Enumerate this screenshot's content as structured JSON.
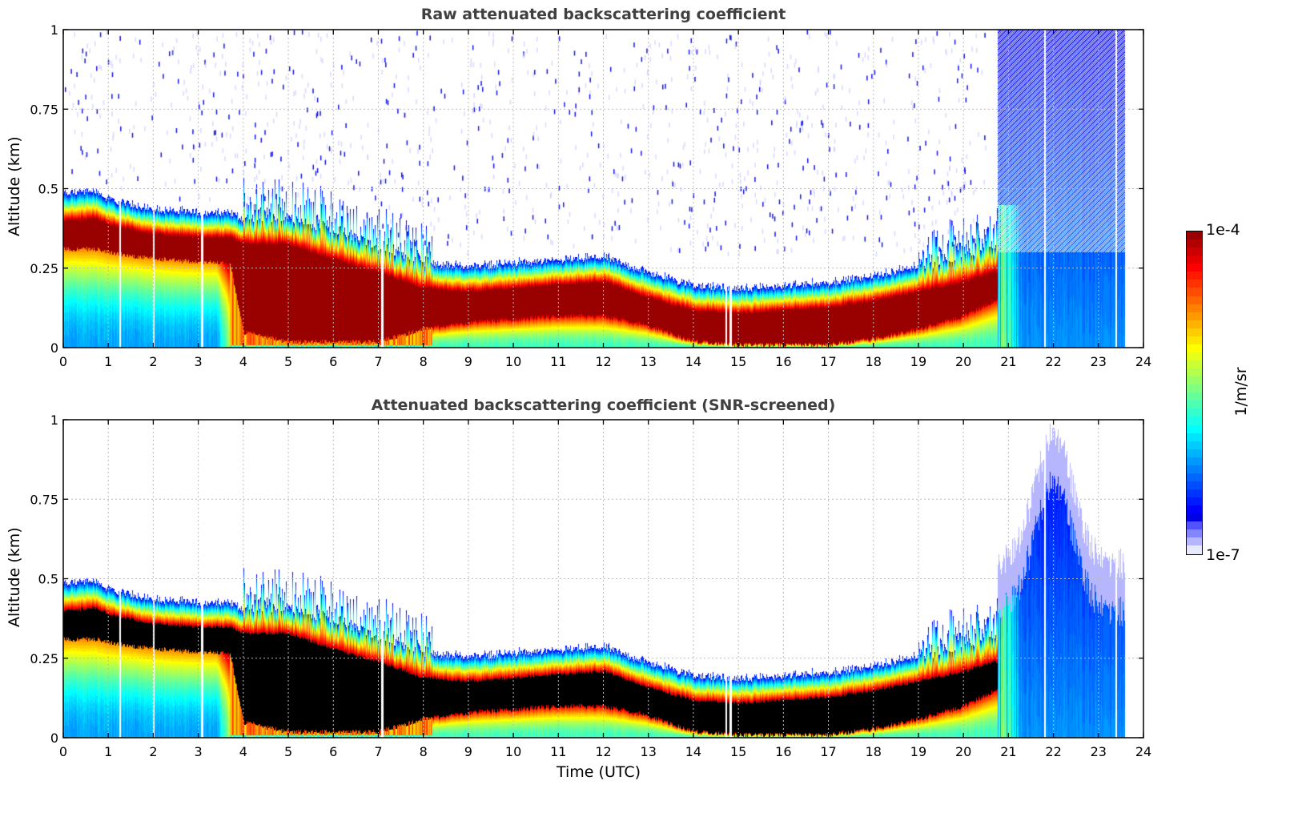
{
  "chart_data": [
    {
      "type": "heatmap",
      "title": "Raw attenuated backscattering coefficient",
      "xlabel": "",
      "ylabel": "Altitude (km)",
      "xlim": [
        0,
        24
      ],
      "ylim": [
        0,
        1
      ],
      "xticks": [
        "0",
        "1",
        "2",
        "3",
        "4",
        "5",
        "6",
        "7",
        "8",
        "9",
        "10",
        "11",
        "12",
        "13",
        "14",
        "15",
        "16",
        "17",
        "18",
        "19",
        "20",
        "21",
        "22",
        "23",
        "24"
      ],
      "yticks": [
        "0",
        "0.25",
        "0.5",
        "0.75",
        "1"
      ],
      "grid": true,
      "screened": false,
      "description": "Strong backscatter layer (cloud/aerosol top) near 0.35-0.45 km from 0-4 UTC, descending to ~0.15 km at 9-12 UTC and ~0.1 km at 14-17 UTC, rising to ~0.2 km near 20 UTC; noisy blue signal up to 1 km after ~20.8 UTC; data ends ~23.6 UTC",
      "layer_profile": {
        "time_utc": [
          0,
          0.7,
          1,
          2,
          3,
          3.7,
          4,
          5,
          6,
          7,
          8,
          9,
          10,
          11,
          12,
          13,
          14,
          15,
          16,
          17,
          18,
          19,
          20,
          20.7
        ],
        "layer_top_km": [
          0.48,
          0.49,
          0.46,
          0.43,
          0.42,
          0.42,
          0.4,
          0.4,
          0.36,
          0.31,
          0.26,
          0.25,
          0.26,
          0.27,
          0.28,
          0.23,
          0.19,
          0.18,
          0.19,
          0.2,
          0.22,
          0.25,
          0.28,
          0.32
        ],
        "core_top_km": [
          0.4,
          0.41,
          0.39,
          0.36,
          0.35,
          0.35,
          0.33,
          0.33,
          0.28,
          0.24,
          0.19,
          0.18,
          0.19,
          0.2,
          0.21,
          0.16,
          0.12,
          0.11,
          0.12,
          0.13,
          0.15,
          0.18,
          0.21,
          0.24
        ],
        "core_base_km": [
          0.31,
          0.31,
          0.3,
          0.28,
          0.27,
          0.27,
          0.05,
          0.02,
          0.02,
          0.02,
          0.06,
          0.08,
          0.09,
          0.1,
          0.1,
          0.07,
          0.02,
          0.01,
          0.01,
          0.01,
          0.03,
          0.06,
          0.1,
          0.15
        ]
      }
    },
    {
      "type": "heatmap",
      "title": "Attenuated backscattering coefficient (SNR-screened)",
      "xlabel": "Time (UTC)",
      "ylabel": "Altitude (km)",
      "xlim": [
        0,
        24
      ],
      "ylim": [
        0,
        1
      ],
      "xticks": [
        "0",
        "1",
        "2",
        "3",
        "4",
        "5",
        "6",
        "7",
        "8",
        "9",
        "10",
        "11",
        "12",
        "13",
        "14",
        "15",
        "16",
        "17",
        "18",
        "19",
        "20",
        "21",
        "22",
        "23",
        "24"
      ],
      "yticks": [
        "0",
        "0.25",
        "0.5",
        "0.75",
        "1"
      ],
      "grid": true,
      "screened": true,
      "description": "Same field with low-SNR pixels removed; saturated layer core drawn in black; after ~21 UTC blue signal extends to ~0.95 km near 22 UTC"
    }
  ],
  "colorbar": {
    "min_label": "1e-7",
    "max_label": "1e-4",
    "unit": "1/m/sr",
    "colormap": "jet",
    "scale": "log"
  },
  "colors": {
    "title": "#404040",
    "grid": "#bbbbbb",
    "saturated_screened": "#000000"
  }
}
